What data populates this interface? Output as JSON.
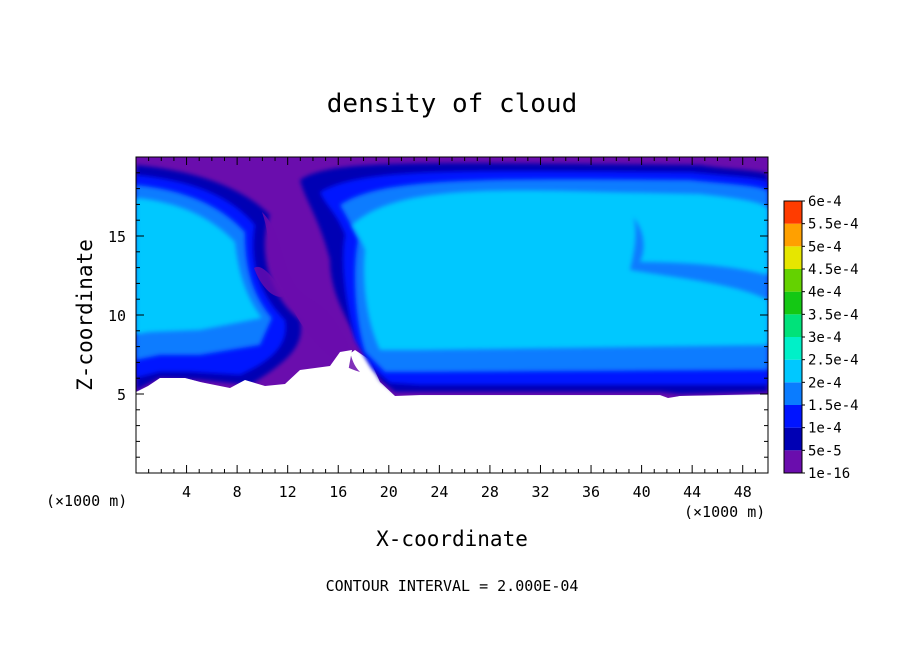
{
  "chart_data": {
    "type": "heatmap",
    "title": "density of cloud",
    "xlabel": "X-coordinate",
    "ylabel": "Z-coordinate",
    "x_unit_left": "(×1000 m)",
    "x_unit_right": "(×1000 m)",
    "xlim": [
      0,
      50
    ],
    "ylim": [
      0,
      20
    ],
    "x_ticks": [
      4,
      8,
      12,
      16,
      20,
      24,
      28,
      32,
      36,
      40,
      44,
      48
    ],
    "y_ticks": [
      5,
      10,
      15
    ],
    "footnote": "CONTOUR INTERVAL = 2.000E-04",
    "colorbar": {
      "labels": [
        "1e-16",
        "5e-5",
        "1e-4",
        "1.5e-4",
        "2e-4",
        "2.5e-4",
        "3e-4",
        "3.5e-4",
        "4e-4",
        "4.5e-4",
        "5e-4",
        "5.5e-4",
        "6e-4"
      ],
      "colors": [
        "#6a0dad",
        "#0000b4",
        "#0014ff",
        "#0a7cff",
        "#00c8ff",
        "#00f0c8",
        "#00e27a",
        "#14c814",
        "#64d200",
        "#e6e600",
        "#ffa000",
        "#ff3c00",
        "#ff1414",
        "#ff8c8c"
      ]
    },
    "cloud_base_z": 5,
    "cloud_top_z": 20,
    "levels_note": "max ~1.9e-4 (cyan), outer edges 1e-16 (purple)"
  }
}
